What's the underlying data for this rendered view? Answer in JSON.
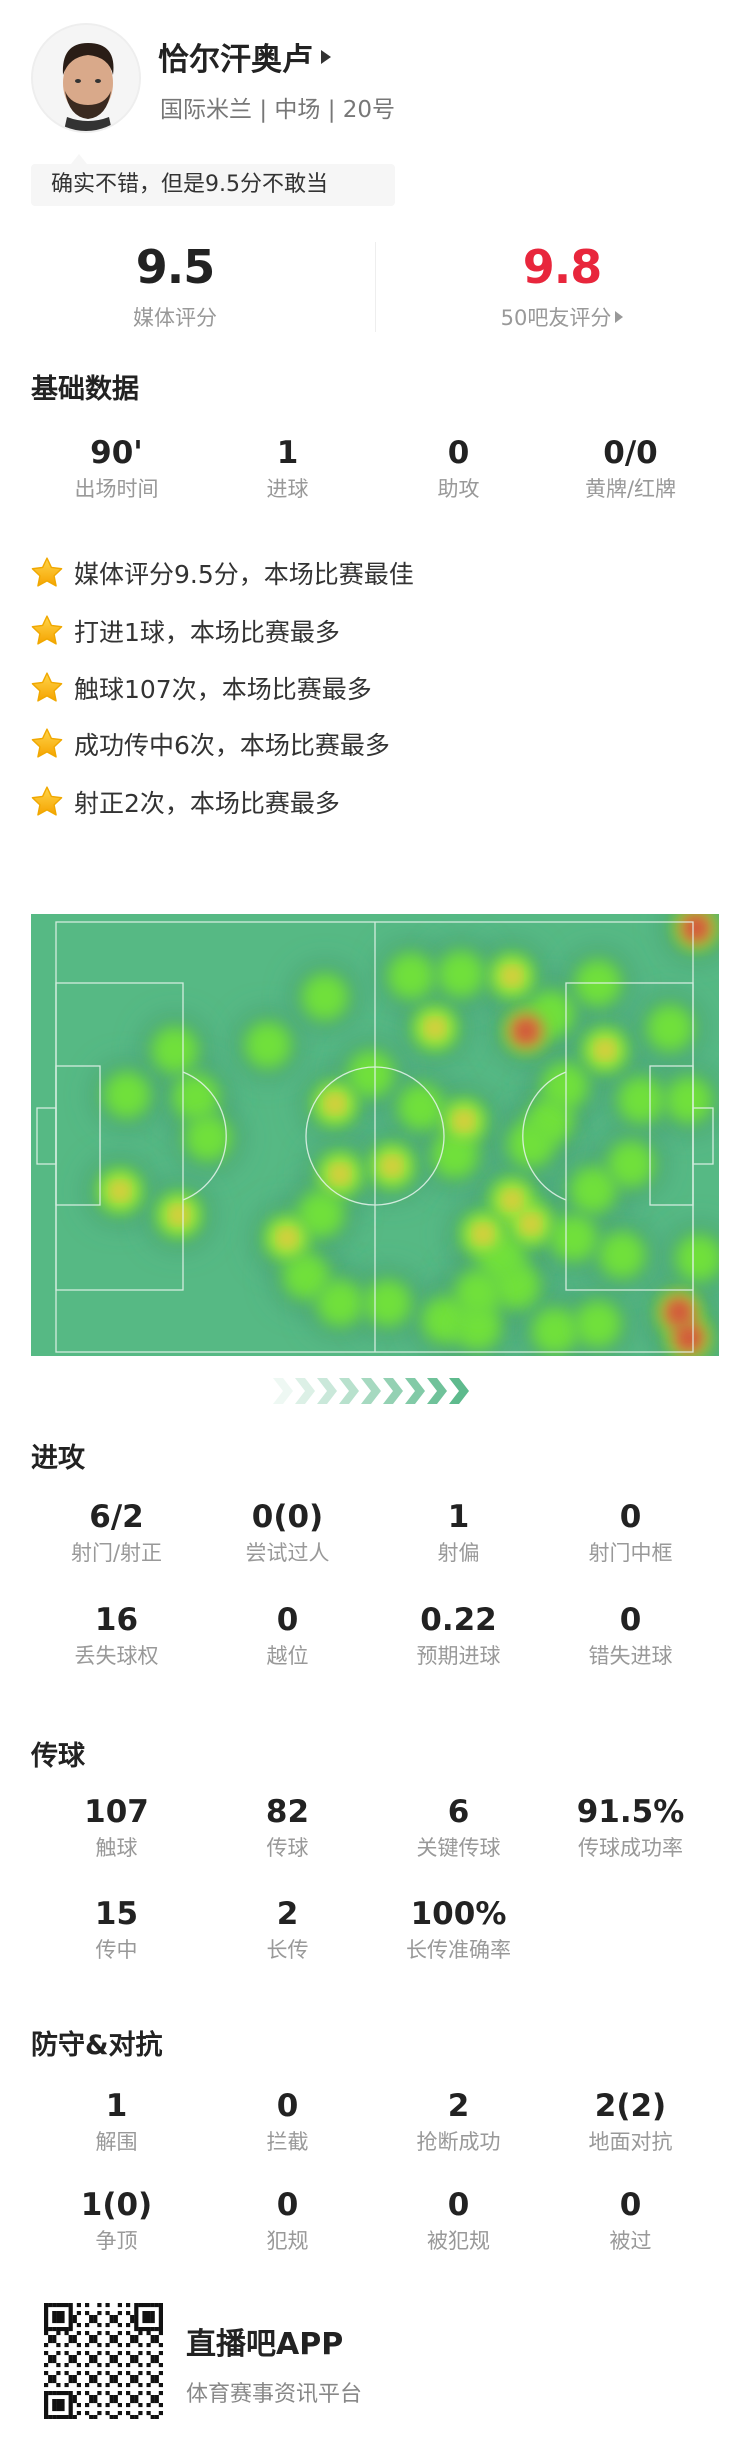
{
  "player": {
    "name": "恰尔汗奥卢",
    "team": "国际米兰",
    "position": "中场",
    "number": "20号",
    "separator": "|"
  },
  "comment": "确实不错，但是9.5分不敢当",
  "ratings": {
    "media": {
      "value": "9.5",
      "label": "媒体评分"
    },
    "fans": {
      "value": "9.8",
      "label": "50吧友评分",
      "color": "#e8263c"
    }
  },
  "basic": {
    "title": "基础数据",
    "stats": [
      {
        "v": "90'",
        "l": "出场时间"
      },
      {
        "v": "1",
        "l": "进球"
      },
      {
        "v": "0",
        "l": "助攻"
      },
      {
        "v": "0/0",
        "l": "黄牌/红牌"
      }
    ]
  },
  "highlights": [
    "媒体评分9.5分，本场比赛最佳",
    "打进1球，本场比赛最多",
    "触球107次，本场比赛最多",
    "成功传中6次，本场比赛最多",
    "射正2次，本场比赛最多"
  ],
  "heatmap": {
    "pitch_color": "#56b984",
    "direction_arrow_color": "#5bb98b"
  },
  "attack": {
    "title": "进攻",
    "stats": [
      {
        "v": "6/2",
        "l": "射门/射正"
      },
      {
        "v": "0(0)",
        "l": "尝试过人"
      },
      {
        "v": "1",
        "l": "射偏"
      },
      {
        "v": "0",
        "l": "射门中框"
      },
      {
        "v": "16",
        "l": "丢失球权"
      },
      {
        "v": "0",
        "l": "越位"
      },
      {
        "v": "0.22",
        "l": "预期进球"
      },
      {
        "v": "0",
        "l": "错失进球"
      }
    ]
  },
  "passing": {
    "title": "传球",
    "stats": [
      {
        "v": "107",
        "l": "触球"
      },
      {
        "v": "82",
        "l": "传球"
      },
      {
        "v": "6",
        "l": "关键传球"
      },
      {
        "v": "91.5%",
        "l": "传球成功率"
      },
      {
        "v": "15",
        "l": "传中"
      },
      {
        "v": "2",
        "l": "长传"
      },
      {
        "v": "100%",
        "l": "长传准确率"
      }
    ]
  },
  "defense": {
    "title": "防守&对抗",
    "stats": [
      {
        "v": "1",
        "l": "解围"
      },
      {
        "v": "0",
        "l": "拦截"
      },
      {
        "v": "2",
        "l": "抢断成功"
      },
      {
        "v": "2(2)",
        "l": "地面对抗"
      },
      {
        "v": "1(0)",
        "l": "争顶"
      },
      {
        "v": "0",
        "l": "犯规"
      },
      {
        "v": "0",
        "l": "被犯规"
      },
      {
        "v": "0",
        "l": "被过"
      }
    ]
  },
  "footer": {
    "brand": "直播吧APP",
    "slogan": "体育赛事资讯平台"
  }
}
